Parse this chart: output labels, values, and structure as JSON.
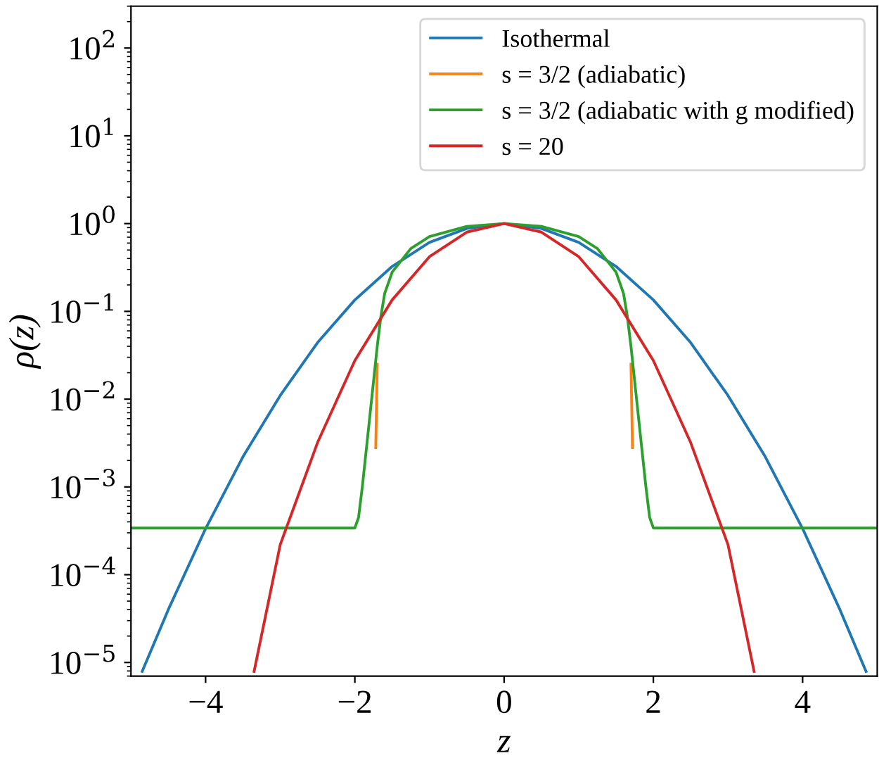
{
  "chart_data": {
    "type": "line",
    "xlabel": "z",
    "ylabel": "ρ(z)",
    "log": "y",
    "legend": "top right",
    "grid": false,
    "marker": "none",
    "line_style": "solid",
    "xlim": [
      -5,
      5
    ],
    "xticks": [
      {
        "value": -4,
        "label": "−4"
      },
      {
        "value": -2,
        "label": "−2"
      },
      0,
      2,
      4
    ],
    "ylim": [
      7e-06,
      300
    ],
    "yticks": [
      {
        "value": 1e-05,
        "label": "10$^{−5}$"
      },
      {
        "value": 0.0001,
        "label": "10$^{−4}$"
      },
      {
        "value": 0.001,
        "label": "10$^{−3}$"
      },
      {
        "value": 0.01,
        "label": "10$^{−2}$"
      },
      {
        "value": 0.1,
        "label": "10$^{−1}$"
      },
      {
        "value": 1,
        "label": "10$^{0}$"
      },
      {
        "value": 10,
        "label": "10$^{1}$"
      },
      {
        "value": 100,
        "label": "10$^{2}$"
      }
    ],
    "series": [
      {
        "name": "Isothermal",
        "color": "#1f77b4",
        "x": [
          -4.85,
          -4.5,
          -4,
          -3.5,
          -3,
          -2.5,
          -2,
          -1.5,
          -1,
          -0.5,
          0,
          0.5,
          1,
          1.5,
          2,
          2.5,
          3,
          3.5,
          4,
          4.5,
          4.85
        ],
        "values": [
          7.9e-06,
          4e-05,
          0.000335,
          0.0022,
          0.011,
          0.044,
          0.135,
          0.325,
          0.61,
          0.88,
          1,
          0.88,
          0.61,
          0.325,
          0.135,
          0.044,
          0.011,
          0.0022,
          0.000335,
          4e-05,
          7.9e-06
        ]
      },
      {
        "name": "s = 3/2 (adiabatic)",
        "color": "#ff7f0e",
        "x": [
          -1.72,
          -1.7,
          -1.65,
          -1.6,
          -1.5,
          -1.25,
          -1,
          -0.5,
          0,
          0.5,
          1,
          1.25,
          1.5,
          1.6,
          1.65,
          1.7,
          1.72
        ],
        "values": [
          0.0028,
          0.025,
          null,
          null,
          null,
          null,
          null,
          null,
          null,
          null,
          null,
          null,
          null,
          null,
          null,
          0.025,
          0.0028
        ]
      },
      {
        "name": "s = 3/2 (adiabatic with g modified)",
        "color": "#2ca02c",
        "x": [
          -5,
          -2,
          -1.95,
          -1.9,
          -1.8,
          -1.7,
          -1.65,
          -1.6,
          -1.5,
          -1.25,
          -1,
          -0.5,
          0,
          0.5,
          1,
          1.25,
          1.5,
          1.6,
          1.65,
          1.7,
          1.8,
          1.9,
          1.95,
          2,
          5
        ],
        "values": [
          0.00034,
          0.00034,
          0.00045,
          0.001,
          0.0063,
          0.04,
          0.089,
          0.16,
          0.28,
          0.52,
          0.71,
          0.93,
          1,
          0.93,
          0.71,
          0.52,
          0.28,
          0.16,
          0.089,
          0.04,
          0.0063,
          0.001,
          0.00045,
          0.00034,
          0.00034
        ]
      },
      {
        "name": "s = 20",
        "color": "#d62728",
        "x": [
          -3.35,
          -3,
          -2.5,
          -2,
          -1.5,
          -1,
          -0.5,
          0,
          0.5,
          1,
          1.5,
          2,
          2.5,
          3,
          3.35
        ],
        "values": [
          7.9e-06,
          0.00022,
          0.0032,
          0.0275,
          0.135,
          0.42,
          0.8,
          1,
          0.8,
          0.42,
          0.135,
          0.0275,
          0.0032,
          0.00022,
          7.9e-06
        ]
      }
    ]
  }
}
